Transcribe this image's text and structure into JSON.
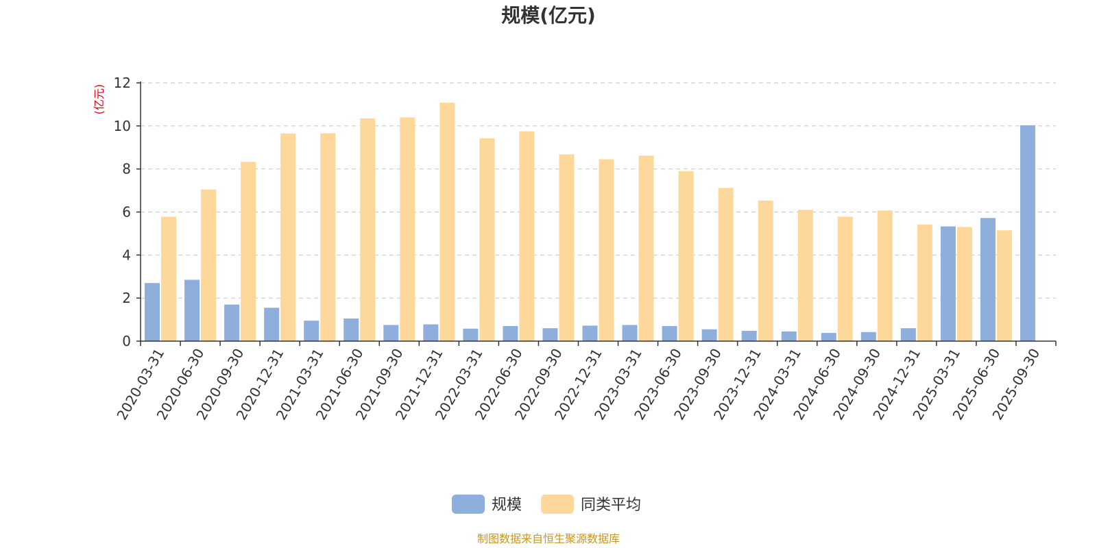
{
  "chart_data": {
    "type": "bar",
    "title": "规模(亿元)",
    "ylabel": "(亿元)",
    "ylim": [
      0,
      12
    ],
    "yticks": [
      0,
      2,
      4,
      6,
      8,
      10,
      12
    ],
    "grid": true,
    "legend_position": "bottom",
    "categories": [
      "2020-03-31",
      "2020-06-30",
      "2020-09-30",
      "2020-12-31",
      "2021-03-31",
      "2021-06-30",
      "2021-09-30",
      "2021-12-31",
      "2022-03-31",
      "2022-06-30",
      "2022-09-30",
      "2022-12-31",
      "2023-03-31",
      "2023-06-30",
      "2023-09-30",
      "2023-12-31",
      "2024-03-31",
      "2024-06-30",
      "2024-09-30",
      "2024-12-31",
      "2025-03-31",
      "2025-06-30",
      "2025-09-30"
    ],
    "series": [
      {
        "name": "规模",
        "color": "#8eaedc",
        "values": [
          2.7,
          2.85,
          1.7,
          1.55,
          0.95,
          1.05,
          0.75,
          0.78,
          0.58,
          0.7,
          0.6,
          0.72,
          0.75,
          0.7,
          0.55,
          0.48,
          0.45,
          0.38,
          0.42,
          0.6,
          5.33,
          5.72,
          10.03
        ]
      },
      {
        "name": "同类平均",
        "color": "#fdd89a",
        "values": [
          5.78,
          7.05,
          8.33,
          9.65,
          9.66,
          10.35,
          10.4,
          11.08,
          9.42,
          9.75,
          8.68,
          8.45,
          8.62,
          7.9,
          7.12,
          6.53,
          6.1,
          5.78,
          6.07,
          5.42,
          5.3,
          5.15,
          null
        ]
      }
    ],
    "source": "制图数据来自恒生聚源数据库"
  }
}
